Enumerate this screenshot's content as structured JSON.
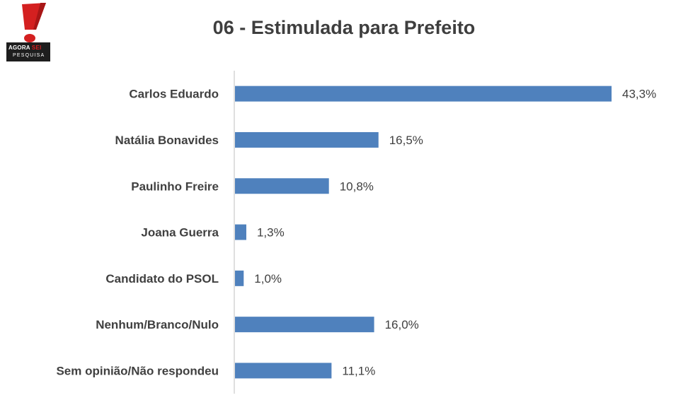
{
  "logo": {
    "line1_a": "AGORA",
    "line1_b": "SEI",
    "line2": "PESQUISA"
  },
  "colors": {
    "bar": "#4f81bd",
    "text": "#404040",
    "axis": "#bfbfbf",
    "logo_red": "#d42020",
    "logo_dark": "#1e1e1e"
  },
  "chart_data": {
    "type": "bar",
    "orientation": "horizontal",
    "title": "06 - Estimulada para Prefeito",
    "categories": [
      "Carlos Eduardo",
      "Natália Bonavides",
      "Paulinho Freire",
      "Joana Guerra",
      "Candidato do PSOL",
      "Nenhum/Branco/Nulo",
      "Sem opinião/Não respondeu"
    ],
    "values": [
      43.3,
      16.5,
      10.8,
      1.3,
      1.0,
      16.0,
      11.1
    ],
    "value_labels": [
      "43,3%",
      "16,5%",
      "10,8%",
      "1,3%",
      "1,0%",
      "16,0%",
      "11,1%"
    ],
    "unit": "%",
    "xlim": [
      0,
      43.3
    ],
    "grid": false,
    "legend": "none"
  }
}
